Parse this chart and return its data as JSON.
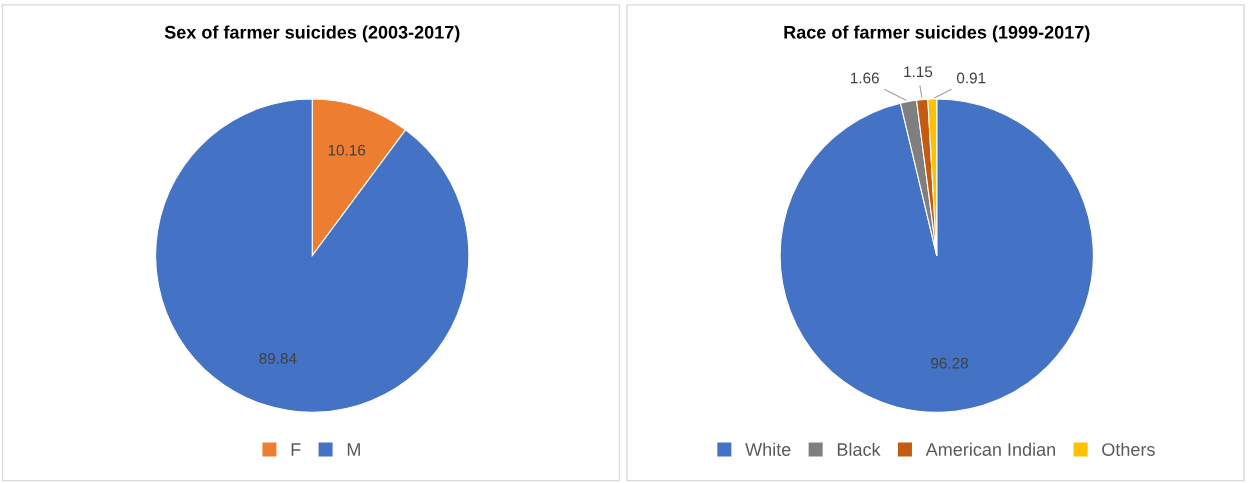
{
  "chart_data": [
    {
      "type": "pie",
      "title": "Sex of farmer suicides (2003-2017)",
      "categories": [
        "F",
        "M"
      ],
      "values": [
        10.16,
        89.84
      ],
      "colors": [
        "#ed7d31",
        "#4472c4"
      ],
      "data_labels": true,
      "legend": "bottom"
    },
    {
      "type": "pie",
      "title": "Race of farmer suicides (1999-2017)",
      "categories": [
        "White",
        "Black",
        "American Indian",
        "Others"
      ],
      "values": [
        96.28,
        1.66,
        1.15,
        0.91
      ],
      "colors": [
        "#4472c4",
        "#7f7f7f",
        "#c55a11",
        "#ffc000"
      ],
      "data_labels": true,
      "legend": "bottom"
    }
  ]
}
